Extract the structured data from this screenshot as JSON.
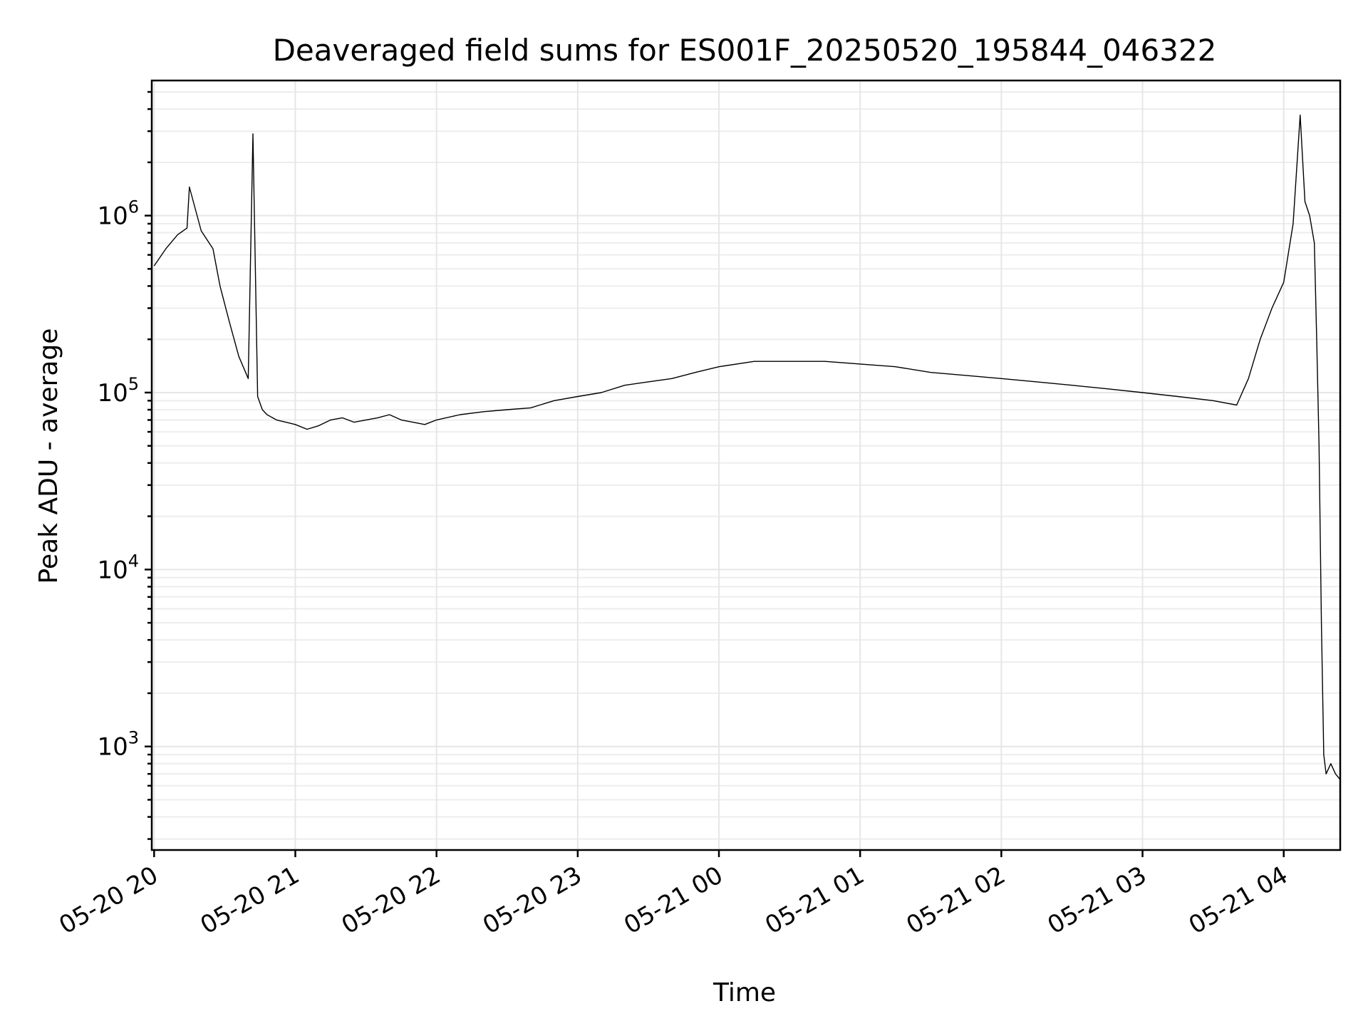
{
  "chart_data": {
    "type": "line",
    "title": "Deaveraged field sums for ES001F_20250520_195844_046322",
    "xlabel": "Time",
    "ylabel": "Peak ADU - average",
    "y_scale": "log",
    "ylim": [
      260,
      5800000
    ],
    "xlim": [
      "2025-05-20 19:59",
      "2025-05-21 04:24"
    ],
    "x_ticks": [
      "05-20 20",
      "05-20 21",
      "05-20 22",
      "05-20 23",
      "05-21 00",
      "05-21 01",
      "05-21 02",
      "05-21 03",
      "05-21 04"
    ],
    "y_ticks": [
      {
        "base": "10",
        "exp": "3",
        "value": 1000
      },
      {
        "base": "10",
        "exp": "4",
        "value": 10000
      },
      {
        "base": "10",
        "exp": "5",
        "value": 100000
      },
      {
        "base": "10",
        "exp": "6",
        "value": 1000000
      }
    ],
    "grid": true,
    "line_color": "#000000",
    "series": [
      {
        "x": [
          "2025-05-20 20:00",
          "2025-05-20 20:05",
          "2025-05-20 20:10",
          "2025-05-20 20:14",
          "2025-05-20 20:15",
          "2025-05-20 20:20",
          "2025-05-20 20:25",
          "2025-05-20 20:28",
          "2025-05-20 20:32",
          "2025-05-20 20:36",
          "2025-05-20 20:40",
          "2025-05-20 20:42",
          "2025-05-20 20:44",
          "2025-05-20 20:46",
          "2025-05-20 20:48",
          "2025-05-20 20:52",
          "2025-05-20 20:56",
          "2025-05-20 21:00",
          "2025-05-20 21:05",
          "2025-05-20 21:10",
          "2025-05-20 21:15",
          "2025-05-20 21:20",
          "2025-05-20 21:25",
          "2025-05-20 21:30",
          "2025-05-20 21:35",
          "2025-05-20 21:40",
          "2025-05-20 21:45",
          "2025-05-20 21:50",
          "2025-05-20 21:55",
          "2025-05-20 22:00",
          "2025-05-20 22:10",
          "2025-05-20 22:20",
          "2025-05-20 22:30",
          "2025-05-20 22:40",
          "2025-05-20 22:50",
          "2025-05-20 23:00",
          "2025-05-20 23:10",
          "2025-05-20 23:20",
          "2025-05-20 23:30",
          "2025-05-20 23:40",
          "2025-05-20 23:50",
          "2025-05-21 00:00",
          "2025-05-21 00:15",
          "2025-05-21 00:30",
          "2025-05-21 00:45",
          "2025-05-21 01:00",
          "2025-05-21 01:15",
          "2025-05-21 01:30",
          "2025-05-21 01:45",
          "2025-05-21 02:00",
          "2025-05-21 02:15",
          "2025-05-21 02:30",
          "2025-05-21 02:45",
          "2025-05-21 03:00",
          "2025-05-21 03:15",
          "2025-05-21 03:30",
          "2025-05-21 03:40",
          "2025-05-21 03:45",
          "2025-05-21 03:50",
          "2025-05-21 03:55",
          "2025-05-21 04:00",
          "2025-05-21 04:04",
          "2025-05-21 04:07",
          "2025-05-21 04:09",
          "2025-05-21 04:11",
          "2025-05-21 04:13",
          "2025-05-21 04:14",
          "2025-05-21 04:15",
          "2025-05-21 04:16",
          "2025-05-21 04:17",
          "2025-05-21 04:18",
          "2025-05-21 04:20",
          "2025-05-21 04:22",
          "2025-05-21 04:24"
        ],
        "y": [
          520000,
          650000,
          780000,
          850000,
          1450000,
          820000,
          650000,
          400000,
          250000,
          160000,
          120000,
          2900000,
          95000,
          80000,
          75000,
          70000,
          68000,
          66000,
          62000,
          65000,
          70000,
          72000,
          68000,
          70000,
          72000,
          75000,
          70000,
          68000,
          66000,
          70000,
          75000,
          78000,
          80000,
          82000,
          90000,
          95000,
          100000,
          110000,
          115000,
          120000,
          130000,
          140000,
          150000,
          150000,
          150000,
          145000,
          140000,
          130000,
          125000,
          120000,
          115000,
          110000,
          105000,
          100000,
          95000,
          90000,
          85000,
          120000,
          200000,
          300000,
          420000,
          900000,
          3700000,
          1200000,
          1000000,
          700000,
          200000,
          50000,
          5000,
          900,
          700,
          800,
          700,
          650
        ]
      }
    ]
  }
}
